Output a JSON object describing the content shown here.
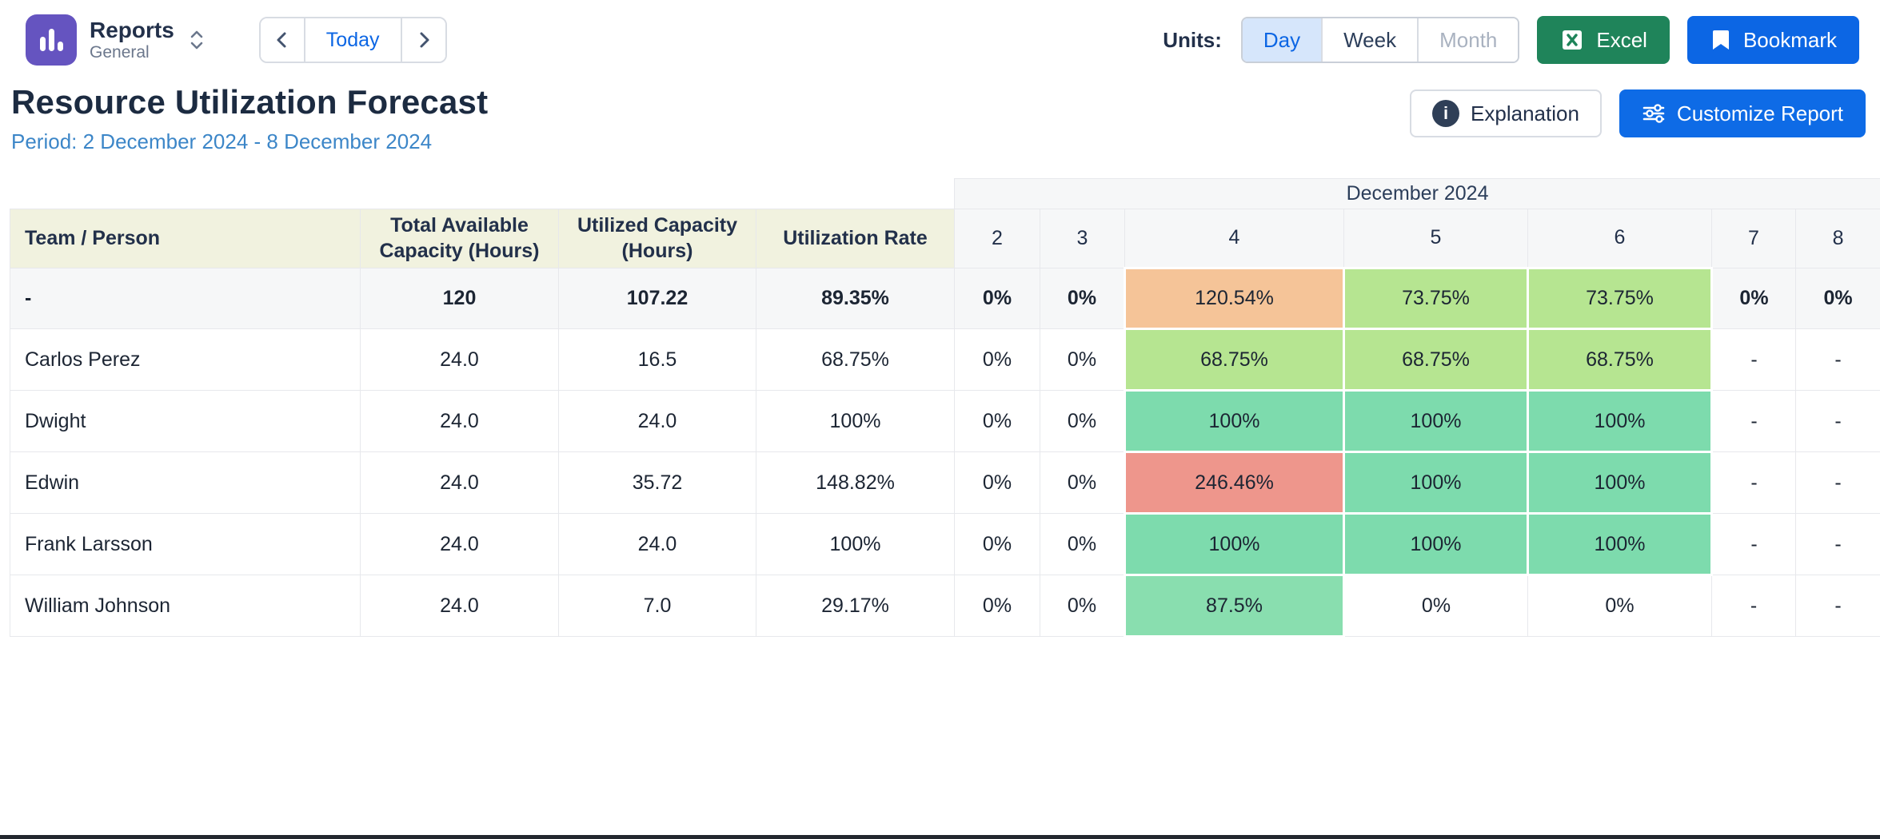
{
  "topbar": {
    "app_title": "Reports",
    "app_subtitle": "General",
    "today_label": "Today",
    "units_label": "Units:",
    "units_options": [
      {
        "label": "Day",
        "state": "selected"
      },
      {
        "label": "Week",
        "state": "default"
      },
      {
        "label": "Month",
        "state": "disabled"
      }
    ],
    "excel_label": "Excel",
    "bookmark_label": "Bookmark"
  },
  "page": {
    "title": "Resource Utilization Forecast",
    "period": "Period: 2 December 2024 - 8 December 2024",
    "explanation_label": "Explanation",
    "customize_label": "Customize Report"
  },
  "icons": {
    "app_icon": "bar-chart",
    "report_selector": "chevron-up-down",
    "prev": "chevron-left",
    "next": "chevron-right",
    "excel": "excel-grid",
    "bookmark": "bookmark",
    "explanation": "info-circle",
    "customize": "sliders"
  },
  "colors": {
    "orange": "#f5c498",
    "green_light": "#b6e591",
    "teal": "#7ddbad",
    "green_mid": "#89deaf",
    "red": "#ee968c",
    "link": "#2b74c9",
    "period_blue": "#3c86c8",
    "excel_green": "#1f845a",
    "bookmark_blue": "#0c66e4",
    "selected_unit_bg": "#d6e6fb"
  },
  "table": {
    "month_header": "December 2024",
    "headers": [
      "Team / Person",
      "Total Available Capacity (Hours)",
      "Utilized Capacity (Hours)",
      "Utilization Rate"
    ],
    "day_headers": [
      "2",
      "3",
      "4",
      "5",
      "6",
      "7",
      "8"
    ],
    "summary_row": {
      "label": "-",
      "cells": [
        {
          "t": "120",
          "bold": true
        },
        {
          "t": "107.22",
          "bold": true
        },
        {
          "t": "89.35%",
          "bold": true
        },
        {
          "t": "0%",
          "bold": true
        },
        {
          "t": "0%",
          "bold": true
        },
        {
          "t": "120.54%",
          "bg": "orange"
        },
        {
          "t": "73.75%",
          "bg": "green_light"
        },
        {
          "t": "73.75%",
          "bg": "green_light"
        },
        {
          "t": "0%",
          "bold": true
        },
        {
          "t": "0%",
          "bold": true
        }
      ]
    },
    "rows": [
      {
        "label": "Carlos Perez",
        "cells": [
          {
            "t": "24.0"
          },
          {
            "t": "16.5"
          },
          {
            "t": "68.75%"
          },
          {
            "t": "0%",
            "link": true
          },
          {
            "t": "0%",
            "link": true
          },
          {
            "t": "68.75%",
            "link": true,
            "bg": "green_light"
          },
          {
            "t": "68.75%",
            "link": true,
            "bg": "green_light"
          },
          {
            "t": "68.75%",
            "link": true,
            "bg": "green_light"
          },
          {
            "t": "-",
            "link": true,
            "dash": true
          },
          {
            "t": "-",
            "link": true,
            "dash": true
          }
        ]
      },
      {
        "label": "Dwight",
        "cells": [
          {
            "t": "24.0"
          },
          {
            "t": "24.0"
          },
          {
            "t": "100%"
          },
          {
            "t": "0%",
            "link": true
          },
          {
            "t": "0%",
            "link": true
          },
          {
            "t": "100%",
            "link": true,
            "bg": "teal"
          },
          {
            "t": "100%",
            "link": true,
            "bg": "teal"
          },
          {
            "t": "100%",
            "link": true,
            "bg": "teal"
          },
          {
            "t": "-",
            "link": true,
            "dash": true
          },
          {
            "t": "-",
            "link": true,
            "dash": true
          }
        ]
      },
      {
        "label": "Edwin",
        "cells": [
          {
            "t": "24.0"
          },
          {
            "t": "35.72"
          },
          {
            "t": "148.82%"
          },
          {
            "t": "0%",
            "link": true
          },
          {
            "t": "0%",
            "link": true
          },
          {
            "t": "246.46%",
            "link": true,
            "bg": "red"
          },
          {
            "t": "100%",
            "link": true,
            "bg": "teal"
          },
          {
            "t": "100%",
            "link": true,
            "bg": "teal"
          },
          {
            "t": "-",
            "link": true,
            "dash": true
          },
          {
            "t": "-",
            "link": true,
            "dash": true
          }
        ]
      },
      {
        "label": "Frank Larsson",
        "cells": [
          {
            "t": "24.0"
          },
          {
            "t": "24.0"
          },
          {
            "t": "100%"
          },
          {
            "t": "0%",
            "link": true
          },
          {
            "t": "0%",
            "link": true
          },
          {
            "t": "100%",
            "link": true,
            "bg": "teal"
          },
          {
            "t": "100%",
            "link": true,
            "bg": "teal"
          },
          {
            "t": "100%",
            "link": true,
            "bg": "teal"
          },
          {
            "t": "-",
            "link": true,
            "dash": true
          },
          {
            "t": "-",
            "link": true,
            "dash": true
          }
        ]
      },
      {
        "label": "William Johnson",
        "cells": [
          {
            "t": "24.0"
          },
          {
            "t": "7.0"
          },
          {
            "t": "29.17%"
          },
          {
            "t": "0%",
            "link": true
          },
          {
            "t": "0%",
            "link": true
          },
          {
            "t": "87.5%",
            "link": true,
            "bg": "green_mid"
          },
          {
            "t": "0%",
            "link": true
          },
          {
            "t": "0%",
            "link": true
          },
          {
            "t": "-",
            "link": true,
            "dash": true
          },
          {
            "t": "-",
            "link": true,
            "dash": true
          }
        ]
      }
    ]
  }
}
